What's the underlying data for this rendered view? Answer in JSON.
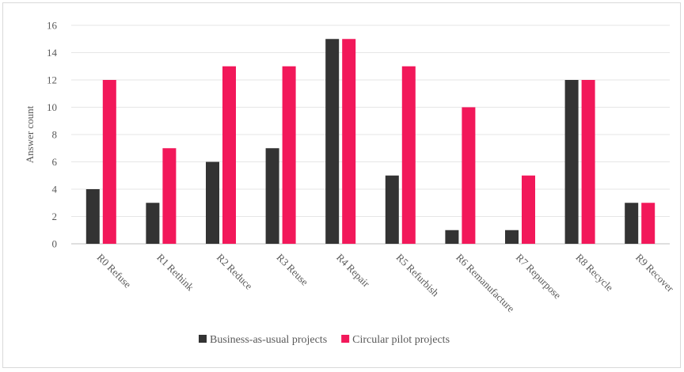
{
  "chart_data": {
    "type": "bar",
    "categories": [
      "R0 Refuse",
      "R1 Rethink",
      "R2 Reduce",
      "R3 Reuse",
      "R4 Repair",
      "R5 Refurbish",
      "R6 Remanufacture",
      "R7 Repurpose",
      "R8 Recycle",
      "R9 Recover"
    ],
    "series": [
      {
        "name": "Business-as-usual projects",
        "color": "#333333",
        "values": [
          4,
          3,
          6,
          7,
          15,
          5,
          1,
          1,
          12,
          3
        ]
      },
      {
        "name": "Circular pilot projects",
        "color": "#f2185a",
        "values": [
          12,
          7,
          13,
          13,
          15,
          13,
          10,
          5,
          12,
          3
        ]
      }
    ],
    "ylabel": "Answer count",
    "xlabel": "",
    "ylim": [
      0,
      16
    ],
    "yticks": [
      "0",
      "2",
      "4",
      "6",
      "8",
      "10",
      "12",
      "14",
      "16"
    ],
    "grid": true,
    "legend": "bottom"
  }
}
